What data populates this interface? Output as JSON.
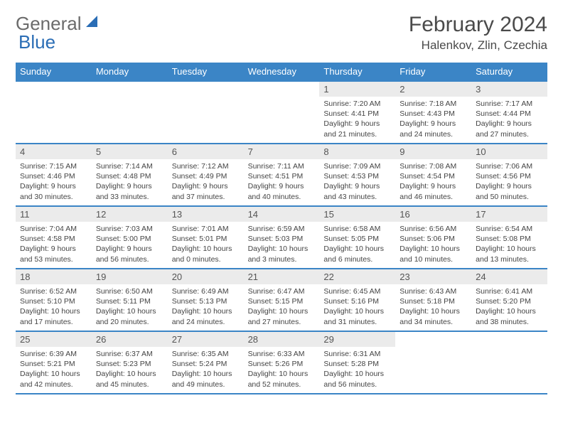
{
  "logo": {
    "general": "General",
    "blue": "Blue",
    "shape_color": "#2a6db5"
  },
  "title": "February 2024",
  "location": "Halenkov, Zlin, Czechia",
  "colors": {
    "header_bg": "#3b85c6",
    "header_text": "#ffffff",
    "day_num_bg": "#ebebeb",
    "border": "#3b85c6",
    "text": "#444444"
  },
  "weekdays": [
    "Sunday",
    "Monday",
    "Tuesday",
    "Wednesday",
    "Thursday",
    "Friday",
    "Saturday"
  ],
  "first_weekday_index": 4,
  "days": [
    {
      "n": 1,
      "sunrise": "7:20 AM",
      "sunset": "4:41 PM",
      "daylight": "9 hours and 21 minutes."
    },
    {
      "n": 2,
      "sunrise": "7:18 AM",
      "sunset": "4:43 PM",
      "daylight": "9 hours and 24 minutes."
    },
    {
      "n": 3,
      "sunrise": "7:17 AM",
      "sunset": "4:44 PM",
      "daylight": "9 hours and 27 minutes."
    },
    {
      "n": 4,
      "sunrise": "7:15 AM",
      "sunset": "4:46 PM",
      "daylight": "9 hours and 30 minutes."
    },
    {
      "n": 5,
      "sunrise": "7:14 AM",
      "sunset": "4:48 PM",
      "daylight": "9 hours and 33 minutes."
    },
    {
      "n": 6,
      "sunrise": "7:12 AM",
      "sunset": "4:49 PM",
      "daylight": "9 hours and 37 minutes."
    },
    {
      "n": 7,
      "sunrise": "7:11 AM",
      "sunset": "4:51 PM",
      "daylight": "9 hours and 40 minutes."
    },
    {
      "n": 8,
      "sunrise": "7:09 AM",
      "sunset": "4:53 PM",
      "daylight": "9 hours and 43 minutes."
    },
    {
      "n": 9,
      "sunrise": "7:08 AM",
      "sunset": "4:54 PM",
      "daylight": "9 hours and 46 minutes."
    },
    {
      "n": 10,
      "sunrise": "7:06 AM",
      "sunset": "4:56 PM",
      "daylight": "9 hours and 50 minutes."
    },
    {
      "n": 11,
      "sunrise": "7:04 AM",
      "sunset": "4:58 PM",
      "daylight": "9 hours and 53 minutes."
    },
    {
      "n": 12,
      "sunrise": "7:03 AM",
      "sunset": "5:00 PM",
      "daylight": "9 hours and 56 minutes."
    },
    {
      "n": 13,
      "sunrise": "7:01 AM",
      "sunset": "5:01 PM",
      "daylight": "10 hours and 0 minutes."
    },
    {
      "n": 14,
      "sunrise": "6:59 AM",
      "sunset": "5:03 PM",
      "daylight": "10 hours and 3 minutes."
    },
    {
      "n": 15,
      "sunrise": "6:58 AM",
      "sunset": "5:05 PM",
      "daylight": "10 hours and 6 minutes."
    },
    {
      "n": 16,
      "sunrise": "6:56 AM",
      "sunset": "5:06 PM",
      "daylight": "10 hours and 10 minutes."
    },
    {
      "n": 17,
      "sunrise": "6:54 AM",
      "sunset": "5:08 PM",
      "daylight": "10 hours and 13 minutes."
    },
    {
      "n": 18,
      "sunrise": "6:52 AM",
      "sunset": "5:10 PM",
      "daylight": "10 hours and 17 minutes."
    },
    {
      "n": 19,
      "sunrise": "6:50 AM",
      "sunset": "5:11 PM",
      "daylight": "10 hours and 20 minutes."
    },
    {
      "n": 20,
      "sunrise": "6:49 AM",
      "sunset": "5:13 PM",
      "daylight": "10 hours and 24 minutes."
    },
    {
      "n": 21,
      "sunrise": "6:47 AM",
      "sunset": "5:15 PM",
      "daylight": "10 hours and 27 minutes."
    },
    {
      "n": 22,
      "sunrise": "6:45 AM",
      "sunset": "5:16 PM",
      "daylight": "10 hours and 31 minutes."
    },
    {
      "n": 23,
      "sunrise": "6:43 AM",
      "sunset": "5:18 PM",
      "daylight": "10 hours and 34 minutes."
    },
    {
      "n": 24,
      "sunrise": "6:41 AM",
      "sunset": "5:20 PM",
      "daylight": "10 hours and 38 minutes."
    },
    {
      "n": 25,
      "sunrise": "6:39 AM",
      "sunset": "5:21 PM",
      "daylight": "10 hours and 42 minutes."
    },
    {
      "n": 26,
      "sunrise": "6:37 AM",
      "sunset": "5:23 PM",
      "daylight": "10 hours and 45 minutes."
    },
    {
      "n": 27,
      "sunrise": "6:35 AM",
      "sunset": "5:24 PM",
      "daylight": "10 hours and 49 minutes."
    },
    {
      "n": 28,
      "sunrise": "6:33 AM",
      "sunset": "5:26 PM",
      "daylight": "10 hours and 52 minutes."
    },
    {
      "n": 29,
      "sunrise": "6:31 AM",
      "sunset": "5:28 PM",
      "daylight": "10 hours and 56 minutes."
    }
  ],
  "labels": {
    "sunrise": "Sunrise:",
    "sunset": "Sunset:",
    "daylight": "Daylight:"
  }
}
